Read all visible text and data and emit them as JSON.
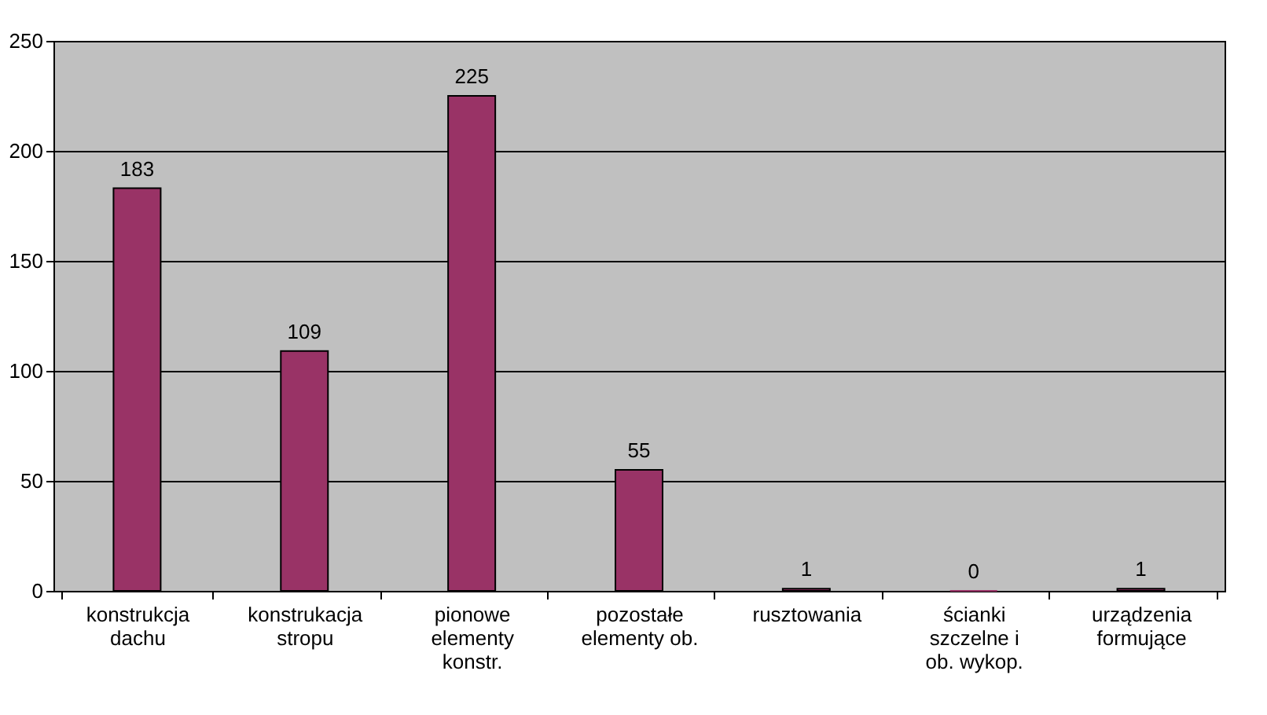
{
  "chart_data": {
    "type": "bar",
    "categories": [
      "konstrukcja dachu",
      "konstrukacja stropu",
      "pionowe elementy konstr.",
      "pozostałe elementy ob.",
      "rusztowania",
      "ścianki szczelne i ob. wykop.",
      "urządzenia formujące"
    ],
    "values": [
      183,
      109,
      225,
      55,
      1,
      0,
      1
    ],
    "color": "#993366",
    "ylim": [
      0,
      250
    ],
    "yticks": [
      0,
      50,
      100,
      150,
      200,
      250
    ],
    "grid": "y",
    "data_labels": true
  }
}
